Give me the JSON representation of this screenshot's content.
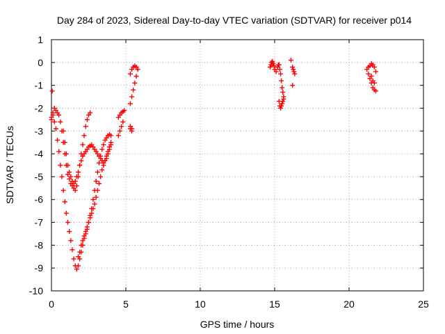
{
  "chart_data": {
    "type": "scatter",
    "title": "Day 284 of 2023, Sidereal Day-to-day VTEC variation (SDTVAR) for receiver p014",
    "xlabel": "GPS time / hours",
    "ylabel": "SDTVAR / TECUs",
    "xlim": [
      0,
      25
    ],
    "ylim": [
      -10,
      1
    ],
    "xticks": [
      "0",
      "5",
      "10",
      "15",
      "20",
      "25"
    ],
    "yticks": [
      "1",
      "0",
      "-1",
      "-2",
      "-3",
      "-4",
      "-5",
      "-6",
      "-7",
      "-8",
      "-9",
      "-10"
    ],
    "grid": true,
    "legend": "none",
    "marker": "plus",
    "color": "#ff0000",
    "series": [
      {
        "x": [
          0.05,
          0.0,
          0.1,
          0.2,
          0.3,
          0.4,
          0.5,
          0.6,
          0.7,
          0.8,
          0.9,
          1.0,
          1.1,
          1.2,
          1.3,
          1.4,
          1.5,
          1.6,
          1.7,
          1.8,
          1.9,
          2.0,
          2.1,
          2.2,
          2.3,
          2.4,
          2.5,
          2.6,
          2.7,
          2.8,
          2.9,
          3.0,
          3.1,
          3.2,
          3.3,
          3.4,
          3.5,
          3.6,
          3.7,
          3.8,
          3.9,
          4.0,
          0.0,
          0.1,
          0.2,
          0.3,
          0.4,
          0.5,
          0.6,
          0.7,
          0.8,
          0.9,
          1.0,
          1.1,
          1.2,
          1.3,
          1.4,
          1.5,
          1.6,
          1.7,
          1.8,
          1.9,
          2.0,
          2.1,
          2.2,
          2.3,
          2.4,
          2.5,
          2.6,
          0.8,
          0.9,
          1.0,
          1.1,
          1.2,
          1.3,
          1.4,
          1.5,
          1.6,
          1.7,
          1.8,
          1.9,
          2.0,
          2.1,
          2.2,
          2.3,
          2.4,
          2.5,
          2.6,
          2.7,
          2.8,
          2.9,
          3.0,
          3.1,
          3.2,
          3.3,
          3.4,
          3.5,
          3.6,
          3.7,
          3.8,
          3.9,
          4.0,
          1.8,
          1.9,
          2.0,
          2.1,
          2.2,
          2.3,
          2.4,
          2.5,
          2.6,
          2.7,
          2.8,
          2.9,
          3.0,
          3.1,
          3.2,
          3.3,
          3.4,
          3.5,
          3.6,
          3.7,
          3.8,
          3.9,
          4.0,
          4.5,
          4.6,
          4.7,
          4.8,
          4.9,
          4.5,
          4.6,
          4.7,
          4.8,
          5.3,
          5.4,
          5.5,
          5.6,
          5.7,
          5.8,
          5.3,
          5.4,
          5.5,
          5.6,
          5.7,
          5.8,
          5.3,
          5.4,
          5.3,
          5.4,
          14.7,
          14.75,
          14.8,
          14.85,
          14.9,
          14.95,
          15.0,
          15.1,
          15.2,
          15.25,
          15.3,
          15.35,
          15.4,
          15.45,
          15.5,
          15.55,
          15.6,
          15.3,
          15.35,
          15.4,
          15.45,
          15.5,
          15.55,
          15.6,
          16.1,
          16.2,
          16.25,
          16.3,
          16.35,
          16.2,
          21.2,
          21.3,
          21.4,
          21.5,
          21.6,
          21.7,
          21.8,
          21.3,
          21.4,
          21.5,
          21.6,
          21.7,
          21.8,
          21.5,
          21.6,
          21.7
        ],
        "y": [
          -1.25,
          -2.5,
          -2.3,
          -2.6,
          -2.9,
          -3.4,
          -3.9,
          -4.5,
          -5.0,
          -5.6,
          -6.1,
          -6.6,
          -7.0,
          -7.4,
          -7.8,
          -8.2,
          -8.6,
          -8.9,
          -9.05,
          -8.9,
          -8.6,
          -8.3,
          -8.0,
          -7.7,
          -7.5,
          -7.3,
          -7.0,
          -6.7,
          -6.4,
          -6.0,
          -5.6,
          -5.2,
          -4.8,
          -4.4,
          -4.1,
          -3.8,
          -3.6,
          -3.4,
          -3.3,
          -3.2,
          -3.15,
          -3.2,
          -2.4,
          -2.2,
          -2.0,
          -2.1,
          -2.2,
          -2.3,
          -2.6,
          -3.0,
          -3.5,
          -4.0,
          -4.5,
          -4.9,
          -5.1,
          -5.3,
          -5.4,
          -5.5,
          -5.6,
          -5.4,
          -5.0,
          -4.5,
          -4.0,
          -3.6,
          -3.2,
          -2.8,
          -2.5,
          -2.3,
          -2.2,
          -3.0,
          -3.5,
          -4.0,
          -4.5,
          -4.8,
          -5.0,
          -5.2,
          -5.3,
          -5.2,
          -5.0,
          -4.8,
          -4.5,
          -4.3,
          -4.1,
          -4.0,
          -3.9,
          -3.8,
          -3.7,
          -3.65,
          -3.6,
          -3.7,
          -3.8,
          -3.9,
          -4.0,
          -4.1,
          -4.2,
          -4.3,
          -4.4,
          -4.3,
          -4.2,
          -4.0,
          -3.8,
          -3.6,
          -8.5,
          -8.3,
          -8.0,
          -7.8,
          -7.6,
          -7.4,
          -7.2,
          -7.0,
          -6.8,
          -6.6,
          -6.4,
          -6.2,
          -5.9,
          -5.6,
          -5.3,
          -5.0,
          -4.7,
          -4.5,
          -4.3,
          -4.1,
          -3.9,
          -3.7,
          -3.5,
          -2.4,
          -2.3,
          -2.2,
          -2.15,
          -2.1,
          -3.2,
          -3.0,
          -2.8,
          -2.6,
          -1.8,
          -1.5,
          -1.2,
          -0.9,
          -0.6,
          -0.3,
          -0.5,
          -0.3,
          -0.2,
          -0.15,
          -0.2,
          -0.3,
          -2.9,
          -3.0,
          -2.8,
          -2.9,
          -0.2,
          -0.1,
          0.0,
          0.05,
          -0.05,
          -0.15,
          -0.3,
          -0.4,
          -0.2,
          -0.1,
          -0.1,
          -0.3,
          -0.5,
          -0.8,
          -1.1,
          -1.3,
          -1.5,
          -1.7,
          -1.9,
          -2.0,
          -1.9,
          -1.8,
          -1.7,
          -1.6,
          0.1,
          -0.2,
          -0.3,
          -0.4,
          -0.5,
          -1.0,
          -0.3,
          -0.5,
          -0.7,
          -0.9,
          -1.1,
          -1.2,
          -1.25,
          -0.2,
          -0.15,
          -0.05,
          -0.1,
          -0.2,
          -0.4,
          -0.6,
          -0.8,
          -0.9
        ]
      }
    ]
  }
}
